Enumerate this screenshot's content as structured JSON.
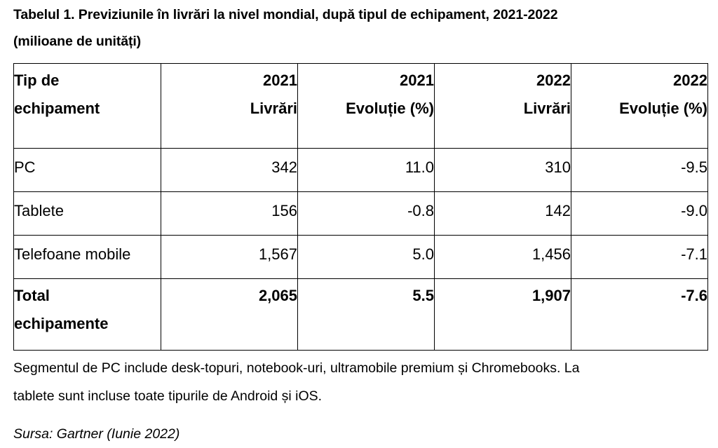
{
  "caption": {
    "line1": "Tabelul 1. Previziunile în livrări la nivel mondial, după tipul de echipament, 2021-2022",
    "line2": "(milioane de unități)"
  },
  "table": {
    "header": {
      "col1": [
        "Tip de",
        "echipament"
      ],
      "col2": [
        "2021",
        "Livrări"
      ],
      "col3": [
        "2021",
        "Evoluție (%)"
      ],
      "col4": [
        "2022",
        "Livrări"
      ],
      "col5": [
        "2022",
        "Evoluție (%)"
      ]
    },
    "rows": [
      {
        "type": "PC",
        "shipments_2021": "342",
        "growth_2021": "11.0",
        "shipments_2022": "310",
        "growth_2022": "-9.5"
      },
      {
        "type": "Tablete",
        "shipments_2021": "156",
        "growth_2021": "-0.8",
        "shipments_2022": "142",
        "growth_2022": "-9.0"
      },
      {
        "type": "Telefoane mobile",
        "shipments_2021": "1,567",
        "growth_2021": "5.0",
        "shipments_2022": "1,456",
        "growth_2022": "-7.1"
      }
    ],
    "total": {
      "type": [
        "Total",
        "echipamente"
      ],
      "shipments_2021": "2,065",
      "growth_2021": "5.5",
      "shipments_2022": "1,907",
      "growth_2022": "-7.6"
    }
  },
  "note": {
    "line1": "Segmentul de PC include desk-topuri, notebook-uri, ultramobile premium și Chromebooks. La",
    "line2": "tablete sunt incluse toate tipurile de Android și iOS."
  },
  "source": "Sursa: Gartner (Iunie 2022)"
}
